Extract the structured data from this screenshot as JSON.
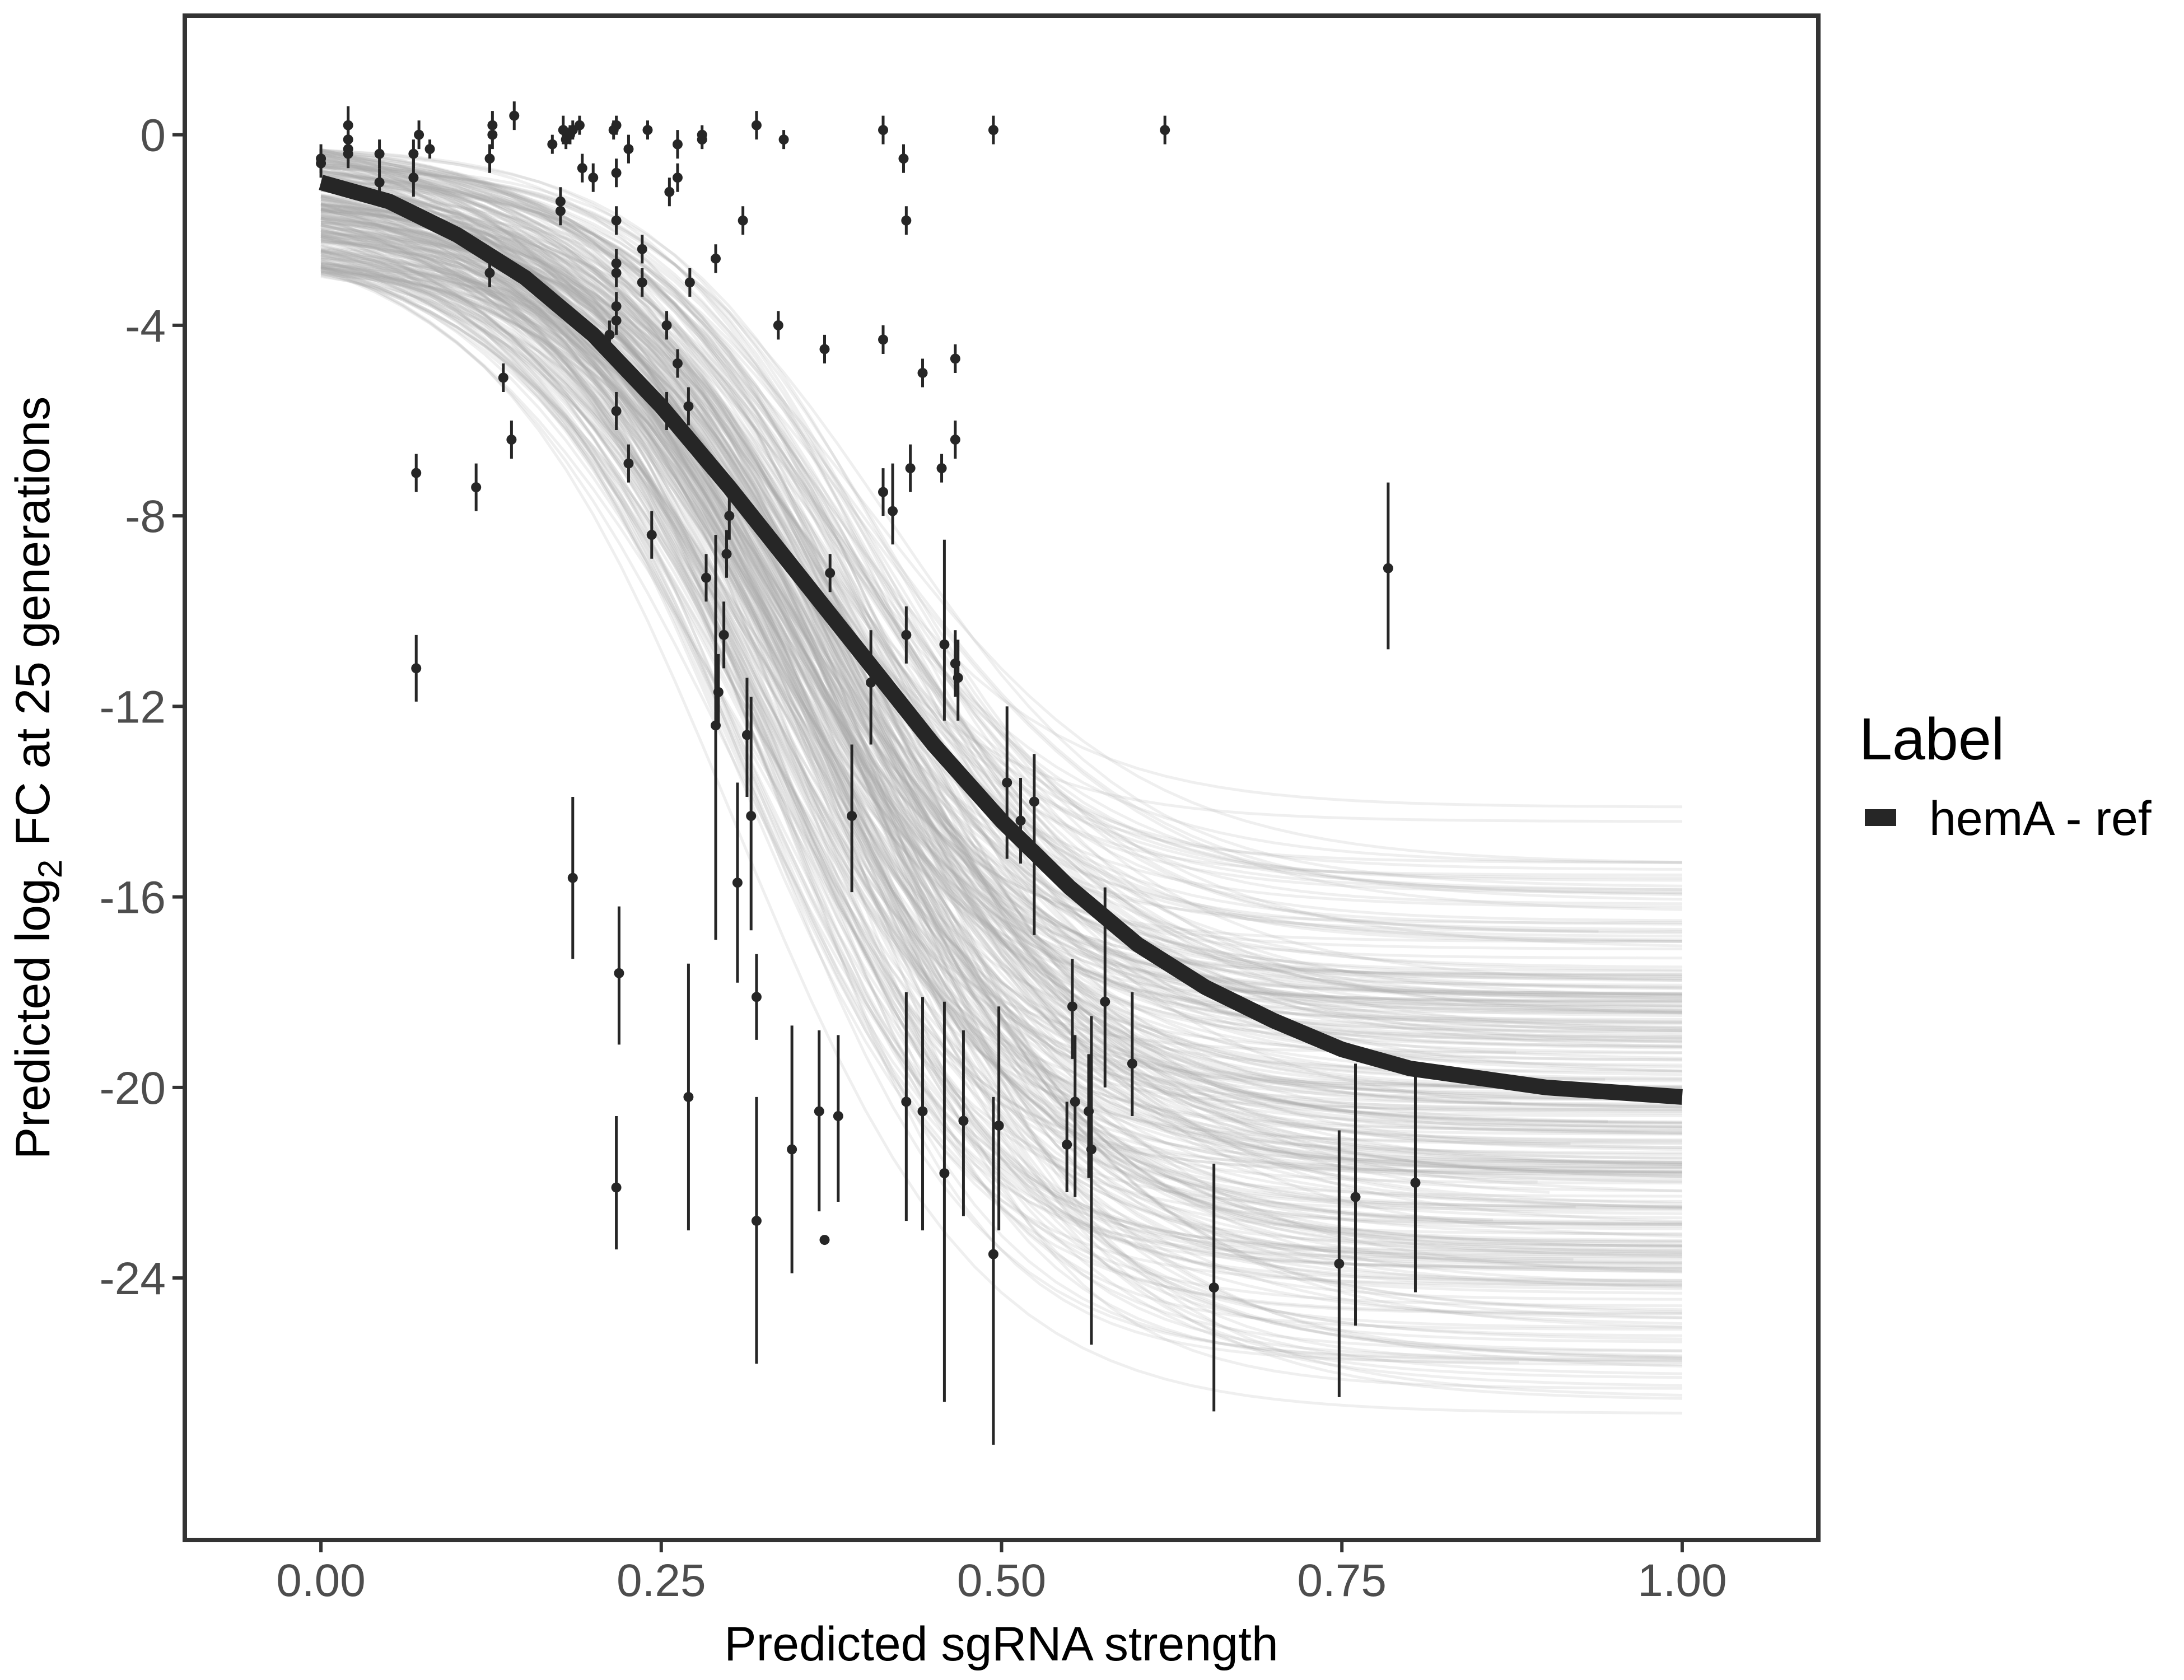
{
  "chart_data": {
    "type": "scatter",
    "title": "",
    "xlabel": "Predicted sgRNA strength",
    "ylabel_prefix": "Predicted  log",
    "ylabel_subscript": "2",
    "ylabel_suffix": " FC at 25 generations",
    "xlim": [
      -0.1,
      1.1
    ],
    "ylim": [
      -29.5,
      2.5
    ],
    "x_ticks": [
      0.0,
      0.25,
      0.5,
      0.75,
      1.0
    ],
    "x_tick_labels": [
      "0.00",
      "0.25",
      "0.50",
      "0.75",
      "1.00"
    ],
    "y_ticks": [
      0,
      -4,
      -8,
      -12,
      -16,
      -20,
      -24
    ],
    "y_tick_labels": [
      "0",
      "-4",
      "-8",
      "-12",
      "-16",
      "-20",
      "-24"
    ],
    "grid": false,
    "legend": {
      "title": "Label",
      "placement": "right",
      "entries": [
        {
          "label": "hemA - ref",
          "color": "#262626"
        }
      ]
    },
    "colors": {
      "fit_line": "#262626",
      "posterior_draws": "#a6a6a6",
      "points": "#262626",
      "panel_border": "#333333"
    },
    "fit_curve": {
      "name": "hemA - ref",
      "x": [
        0.0,
        0.05,
        0.1,
        0.15,
        0.2,
        0.25,
        0.3,
        0.35,
        0.4,
        0.45,
        0.5,
        0.55,
        0.6,
        0.65,
        0.7,
        0.75,
        0.8,
        0.85,
        0.9,
        0.95,
        1.0
      ],
      "y": [
        -1.0,
        -1.4,
        -2.1,
        -3.0,
        -4.2,
        -5.7,
        -7.4,
        -9.2,
        -11.0,
        -12.8,
        -14.4,
        -15.8,
        -17.0,
        -17.9,
        -18.6,
        -19.2,
        -19.6,
        -19.8,
        -20.0,
        -20.1,
        -20.2
      ]
    },
    "posterior_draws": {
      "count": 300,
      "start_y_range": [
        -3.0,
        -0.3
      ],
      "end_y_range": [
        -27.5,
        -14.0
      ],
      "note_units": "log2 FC"
    },
    "points": [
      {
        "x": 0.0,
        "y": -0.5,
        "lo": -0.8,
        "hi": -0.2
      },
      {
        "x": 0.0,
        "y": -0.6,
        "lo": -0.9,
        "hi": -0.3
      },
      {
        "x": 0.02,
        "y": 0.2,
        "lo": -0.2,
        "hi": 0.6
      },
      {
        "x": 0.02,
        "y": -0.1,
        "lo": -0.4,
        "hi": 0.2
      },
      {
        "x": 0.02,
        "y": -0.3,
        "lo": -0.6,
        "hi": 0.0
      },
      {
        "x": 0.02,
        "y": -0.4,
        "lo": -0.7,
        "hi": -0.1
      },
      {
        "x": 0.043,
        "y": -0.4,
        "lo": -0.7,
        "hi": -0.1
      },
      {
        "x": 0.043,
        "y": -1.0,
        "lo": -1.3,
        "hi": -0.7
      },
      {
        "x": 0.068,
        "y": -0.4,
        "lo": -0.7,
        "hi": -0.1
      },
      {
        "x": 0.068,
        "y": -0.9,
        "lo": -1.3,
        "hi": -0.5
      },
      {
        "x": 0.07,
        "y": -7.1,
        "lo": -7.5,
        "hi": -6.7
      },
      {
        "x": 0.07,
        "y": -11.2,
        "lo": -11.9,
        "hi": -10.5
      },
      {
        "x": 0.072,
        "y": 0.0,
        "lo": -0.3,
        "hi": 0.3
      },
      {
        "x": 0.08,
        "y": -0.3,
        "lo": -0.5,
        "hi": -0.1
      },
      {
        "x": 0.114,
        "y": -7.4,
        "lo": -7.9,
        "hi": -6.9
      },
      {
        "x": 0.124,
        "y": -0.5,
        "lo": -0.8,
        "hi": -0.2
      },
      {
        "x": 0.124,
        "y": -2.9,
        "lo": -3.2,
        "hi": -2.6
      },
      {
        "x": 0.126,
        "y": 0.0,
        "lo": -0.3,
        "hi": 0.3
      },
      {
        "x": 0.126,
        "y": 0.2,
        "lo": -0.1,
        "hi": 0.5
      },
      {
        "x": 0.134,
        "y": -5.1,
        "lo": -5.4,
        "hi": -4.8
      },
      {
        "x": 0.14,
        "y": -6.4,
        "lo": -6.8,
        "hi": -6.0
      },
      {
        "x": 0.142,
        "y": 0.4,
        "lo": 0.1,
        "hi": 0.7
      },
      {
        "x": 0.17,
        "y": -0.2,
        "lo": -0.4,
        "hi": 0.0
      },
      {
        "x": 0.176,
        "y": -1.4,
        "lo": -1.7,
        "hi": -1.1
      },
      {
        "x": 0.176,
        "y": -1.6,
        "lo": -1.9,
        "hi": -1.3
      },
      {
        "x": 0.178,
        "y": 0.1,
        "lo": -0.2,
        "hi": 0.4
      },
      {
        "x": 0.18,
        "y": -0.1,
        "lo": -0.3,
        "hi": 0.1
      },
      {
        "x": 0.183,
        "y": 0.0,
        "lo": -0.2,
        "hi": 0.2
      },
      {
        "x": 0.185,
        "y": 0.1,
        "lo": -0.1,
        "hi": 0.3
      },
      {
        "x": 0.185,
        "y": -15.6,
        "lo": -17.3,
        "hi": -13.9
      },
      {
        "x": 0.19,
        "y": 0.2,
        "lo": 0.0,
        "hi": 0.4
      },
      {
        "x": 0.192,
        "y": -0.7,
        "lo": -1.0,
        "hi": -0.4
      },
      {
        "x": 0.2,
        "y": -0.9,
        "lo": -1.2,
        "hi": -0.6
      },
      {
        "x": 0.212,
        "y": -4.2,
        "lo": -4.5,
        "hi": -3.9
      },
      {
        "x": 0.215,
        "y": 0.1,
        "lo": -0.1,
        "hi": 0.3
      },
      {
        "x": 0.217,
        "y": 0.2,
        "lo": 0.0,
        "hi": 0.4
      },
      {
        "x": 0.217,
        "y": -0.8,
        "lo": -1.1,
        "hi": -0.5
      },
      {
        "x": 0.217,
        "y": -1.8,
        "lo": -2.1,
        "hi": -1.5
      },
      {
        "x": 0.217,
        "y": -2.7,
        "lo": -3.0,
        "hi": -2.4
      },
      {
        "x": 0.217,
        "y": -2.9,
        "lo": -3.2,
        "hi": -2.6
      },
      {
        "x": 0.217,
        "y": -3.6,
        "lo": -3.9,
        "hi": -3.3
      },
      {
        "x": 0.217,
        "y": -3.9,
        "lo": -4.2,
        "hi": -3.6
      },
      {
        "x": 0.217,
        "y": -5.8,
        "lo": -6.2,
        "hi": -5.4
      },
      {
        "x": 0.219,
        "y": -17.6,
        "lo": -19.1,
        "hi": -16.2
      },
      {
        "x": 0.217,
        "y": -22.1,
        "lo": -23.4,
        "hi": -20.6
      },
      {
        "x": 0.226,
        "y": -0.3,
        "lo": -0.6,
        "hi": 0.0
      },
      {
        "x": 0.226,
        "y": -6.9,
        "lo": -7.3,
        "hi": -6.5
      },
      {
        "x": 0.236,
        "y": -2.4,
        "lo": -2.7,
        "hi": -2.1
      },
      {
        "x": 0.236,
        "y": -3.1,
        "lo": -3.4,
        "hi": -2.8
      },
      {
        "x": 0.24,
        "y": 0.1,
        "lo": -0.1,
        "hi": 0.3
      },
      {
        "x": 0.243,
        "y": -8.4,
        "lo": -8.9,
        "hi": -7.9
      },
      {
        "x": 0.254,
        "y": -4.0,
        "lo": -4.3,
        "hi": -3.7
      },
      {
        "x": 0.254,
        "y": -5.8,
        "lo": -6.2,
        "hi": -5.4
      },
      {
        "x": 0.256,
        "y": -1.2,
        "lo": -1.5,
        "hi": -0.9
      },
      {
        "x": 0.262,
        "y": -0.2,
        "lo": -0.5,
        "hi": 0.1
      },
      {
        "x": 0.262,
        "y": -0.9,
        "lo": -1.2,
        "hi": -0.6
      },
      {
        "x": 0.262,
        "y": -4.8,
        "lo": -5.1,
        "hi": -4.5
      },
      {
        "x": 0.27,
        "y": -5.7,
        "lo": -6.1,
        "hi": -5.3
      },
      {
        "x": 0.27,
        "y": -20.2,
        "lo": -23.0,
        "hi": -17.4
      },
      {
        "x": 0.271,
        "y": -3.1,
        "lo": -3.4,
        "hi": -2.8
      },
      {
        "x": 0.28,
        "y": -0.1,
        "lo": -0.3,
        "hi": 0.1
      },
      {
        "x": 0.28,
        "y": 0.0,
        "lo": -0.2,
        "hi": 0.2
      },
      {
        "x": 0.283,
        "y": -9.3,
        "lo": -9.8,
        "hi": -8.8
      },
      {
        "x": 0.29,
        "y": -2.6,
        "lo": -2.9,
        "hi": -2.3
      },
      {
        "x": 0.29,
        "y": -12.4,
        "lo": -16.9,
        "hi": -8.4
      },
      {
        "x": 0.292,
        "y": -11.7,
        "lo": -12.4,
        "hi": -10.9
      },
      {
        "x": 0.296,
        "y": -10.5,
        "lo": -11.2,
        "hi": -9.8
      },
      {
        "x": 0.298,
        "y": -8.8,
        "lo": -9.3,
        "hi": -8.3
      },
      {
        "x": 0.3,
        "y": -8.0,
        "lo": -8.5,
        "hi": -7.5
      },
      {
        "x": 0.306,
        "y": -15.7,
        "lo": -17.8,
        "hi": -13.6
      },
      {
        "x": 0.31,
        "y": -1.8,
        "lo": -2.1,
        "hi": -1.5
      },
      {
        "x": 0.313,
        "y": -12.6,
        "lo": -13.9,
        "hi": -11.4
      },
      {
        "x": 0.316,
        "y": -14.3,
        "lo": -16.7,
        "hi": -11.8
      },
      {
        "x": 0.32,
        "y": 0.2,
        "lo": -0.1,
        "hi": 0.5
      },
      {
        "x": 0.32,
        "y": -18.1,
        "lo": -19.0,
        "hi": -17.2
      },
      {
        "x": 0.32,
        "y": -22.8,
        "lo": -25.8,
        "hi": -20.2
      },
      {
        "x": 0.336,
        "y": -4.0,
        "lo": -4.3,
        "hi": -3.7
      },
      {
        "x": 0.34,
        "y": -0.1,
        "lo": -0.3,
        "hi": 0.1
      },
      {
        "x": 0.346,
        "y": -21.3,
        "lo": -23.9,
        "hi": -18.7
      },
      {
        "x": 0.366,
        "y": -20.5,
        "lo": -22.6,
        "hi": -18.8
      },
      {
        "x": 0.37,
        "y": -4.5,
        "lo": -4.8,
        "hi": -4.2
      },
      {
        "x": 0.37,
        "y": -23.2,
        "lo": -23.3,
        "hi": -23.1
      },
      {
        "x": 0.374,
        "y": -9.2,
        "lo": -9.6,
        "hi": -8.8
      },
      {
        "x": 0.38,
        "y": -20.6,
        "lo": -22.4,
        "hi": -18.9
      },
      {
        "x": 0.39,
        "y": -14.3,
        "lo": -15.9,
        "hi": -12.8
      },
      {
        "x": 0.404,
        "y": -11.5,
        "lo": -12.8,
        "hi": -10.4
      },
      {
        "x": 0.413,
        "y": 0.1,
        "lo": -0.2,
        "hi": 0.4
      },
      {
        "x": 0.413,
        "y": -4.3,
        "lo": -4.6,
        "hi": -4.0
      },
      {
        "x": 0.413,
        "y": -7.5,
        "lo": -8.0,
        "hi": -7.0
      },
      {
        "x": 0.42,
        "y": -7.9,
        "lo": -8.6,
        "hi": -6.9
      },
      {
        "x": 0.428,
        "y": -0.5,
        "lo": -0.8,
        "hi": -0.2
      },
      {
        "x": 0.43,
        "y": -1.8,
        "lo": -2.1,
        "hi": -1.5
      },
      {
        "x": 0.43,
        "y": -10.5,
        "lo": -11.1,
        "hi": -9.9
      },
      {
        "x": 0.43,
        "y": -20.3,
        "lo": -22.8,
        "hi": -18.0
      },
      {
        "x": 0.433,
        "y": -7.0,
        "lo": -7.5,
        "hi": -6.5
      },
      {
        "x": 0.442,
        "y": -5.0,
        "lo": -5.3,
        "hi": -4.7
      },
      {
        "x": 0.442,
        "y": -20.5,
        "lo": -23.0,
        "hi": -18.1
      },
      {
        "x": 0.456,
        "y": -7.0,
        "lo": -7.3,
        "hi": -6.7
      },
      {
        "x": 0.458,
        "y": -10.7,
        "lo": -12.3,
        "hi": -8.5
      },
      {
        "x": 0.458,
        "y": -21.8,
        "lo": -26.6,
        "hi": -18.2
      },
      {
        "x": 0.466,
        "y": -4.7,
        "lo": -5.0,
        "hi": -4.4
      },
      {
        "x": 0.466,
        "y": -6.4,
        "lo": -6.8,
        "hi": -6.0
      },
      {
        "x": 0.466,
        "y": -11.1,
        "lo": -11.8,
        "hi": -10.4
      },
      {
        "x": 0.468,
        "y": -11.4,
        "lo": -12.3,
        "hi": -10.6
      },
      {
        "x": 0.472,
        "y": -20.7,
        "lo": -22.7,
        "hi": -18.8
      },
      {
        "x": 0.494,
        "y": 0.1,
        "lo": -0.2,
        "hi": 0.4
      },
      {
        "x": 0.494,
        "y": -23.5,
        "lo": -27.5,
        "hi": -20.2
      },
      {
        "x": 0.498,
        "y": -20.8,
        "lo": -23.0,
        "hi": -18.3
      },
      {
        "x": 0.504,
        "y": -13.6,
        "lo": -15.2,
        "hi": -12.0
      },
      {
        "x": 0.514,
        "y": -14.4,
        "lo": -15.3,
        "hi": -13.5
      },
      {
        "x": 0.524,
        "y": -14.0,
        "lo": -16.8,
        "hi": -13.0
      },
      {
        "x": 0.548,
        "y": -21.2,
        "lo": -22.2,
        "hi": -20.3
      },
      {
        "x": 0.552,
        "y": -18.3,
        "lo": -19.4,
        "hi": -17.3
      },
      {
        "x": 0.554,
        "y": -20.3,
        "lo": -22.3,
        "hi": -18.9
      },
      {
        "x": 0.564,
        "y": -20.5,
        "lo": -21.9,
        "hi": -19.3
      },
      {
        "x": 0.566,
        "y": -21.3,
        "lo": -25.4,
        "hi": -18.5
      },
      {
        "x": 0.576,
        "y": -18.2,
        "lo": -20.0,
        "hi": -15.8
      },
      {
        "x": 0.596,
        "y": -19.5,
        "lo": -20.6,
        "hi": -18.0
      },
      {
        "x": 0.62,
        "y": 0.1,
        "lo": -0.2,
        "hi": 0.4
      },
      {
        "x": 0.656,
        "y": -24.2,
        "lo": -26.8,
        "hi": -21.6
      },
      {
        "x": 0.748,
        "y": -23.7,
        "lo": -26.5,
        "hi": -20.9
      },
      {
        "x": 0.76,
        "y": -22.3,
        "lo": -25.0,
        "hi": -19.5
      },
      {
        "x": 0.784,
        "y": -9.1,
        "lo": -10.8,
        "hi": -7.3
      },
      {
        "x": 0.804,
        "y": -22.0,
        "lo": -24.3,
        "hi": -19.7
      }
    ]
  }
}
